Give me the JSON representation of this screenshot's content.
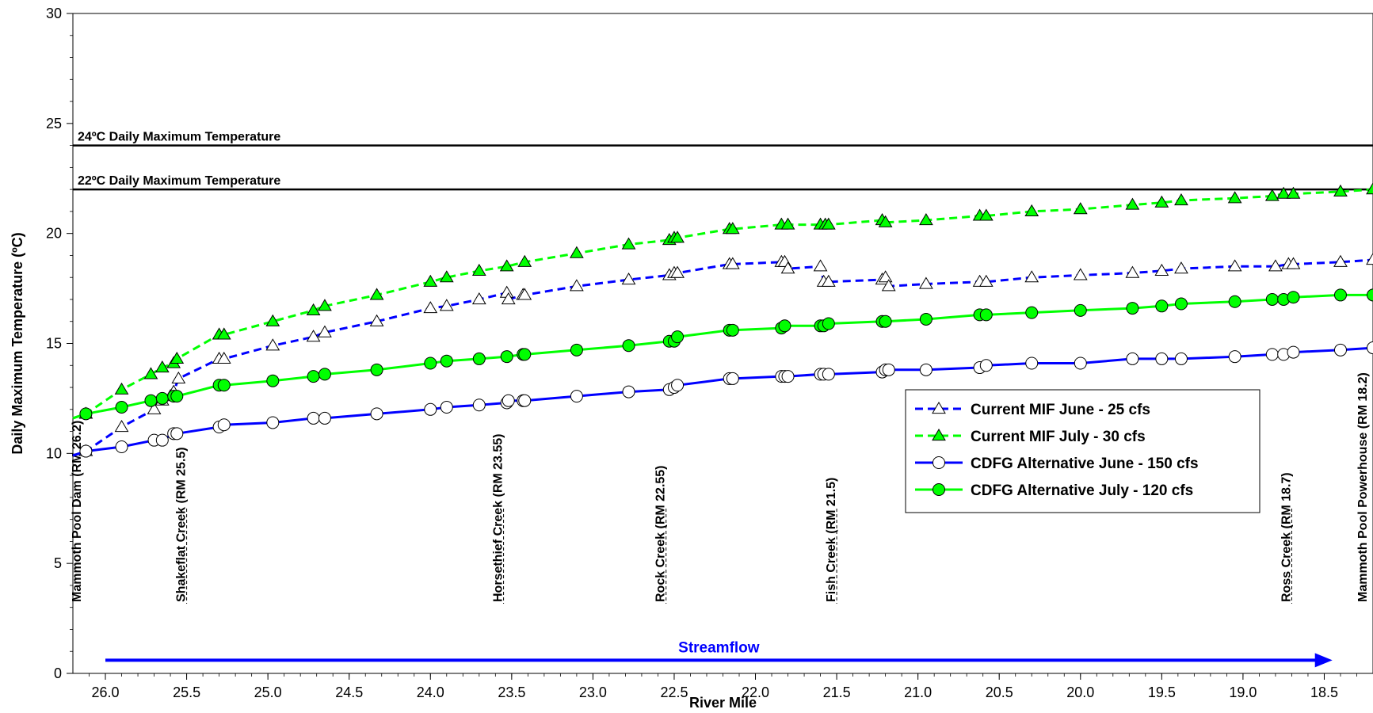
{
  "chart_data": {
    "type": "line",
    "title": "",
    "xlabel": "River Mile",
    "ylabel": "Daily Maximum Temperature (ºC)",
    "xlim": [
      26.2,
      18.2
    ],
    "x_reversed": true,
    "ylim": [
      0,
      30
    ],
    "x_ticks": [
      26.0,
      25.5,
      25.0,
      24.5,
      24.0,
      23.5,
      23.0,
      22.5,
      22.0,
      21.5,
      21.0,
      20.5,
      20.0,
      19.5,
      19.0,
      18.5
    ],
    "x_tick_labels": [
      "26.0",
      "25.5",
      "25.0",
      "24.5",
      "24.0",
      "23.5",
      "23.0",
      "22.5",
      "22.0",
      "21.5",
      "21.0",
      "20.5",
      "20.0",
      "19.5",
      "19.0",
      "18.5"
    ],
    "y_ticks": [
      0,
      5,
      10,
      15,
      20,
      25,
      30
    ],
    "y_tick_labels": [
      "0",
      "5",
      "10",
      "15",
      "20",
      "25",
      "30"
    ],
    "grid": false,
    "legend_position": "right-middle",
    "reference_lines": [
      {
        "y": 24,
        "label": "24ºC Daily Maximum Temperature"
      },
      {
        "y": 22,
        "label": "22ºC Daily Maximum Temperature"
      }
    ],
    "locations": [
      {
        "x": 26.2,
        "label": "Mammoth Pool Dam (RM 26.2)"
      },
      {
        "x": 25.5,
        "label": "Shakeflat Creek (RM 25.5)"
      },
      {
        "x": 23.55,
        "label": "Horsethief Creek (RM 23.55)"
      },
      {
        "x": 22.55,
        "label": "Rock Creek (RM 22.55)"
      },
      {
        "x": 21.5,
        "label": "Fish Creek (RM 21.5)"
      },
      {
        "x": 18.7,
        "label": "Ross Creek (RM 18.7)"
      },
      {
        "x": 18.2,
        "label": "Mammoth Pool Powerhouse (RM 18.2)"
      }
    ],
    "annotation": {
      "label": "Streamflow",
      "from_x": 26.0,
      "to_x": 18.45,
      "y": 0.6
    },
    "series": [
      {
        "name": "Current MIF June - 25 cfs",
        "color": "#0000ff",
        "dash": "dashed",
        "marker": "triangle-open",
        "x": [
          26.2,
          26.12,
          25.9,
          25.7,
          25.65,
          25.6,
          25.58,
          25.55,
          25.3,
          25.27,
          24.97,
          24.72,
          24.65,
          24.33,
          24.0,
          23.9,
          23.7,
          23.53,
          23.52,
          23.43,
          23.42,
          23.1,
          22.78,
          22.53,
          22.5,
          22.48,
          22.16,
          22.14,
          21.84,
          21.82,
          21.8,
          21.6,
          21.58,
          21.55,
          21.22,
          21.2,
          21.18,
          20.95,
          20.62,
          20.58,
          20.3,
          20.0,
          19.68,
          19.5,
          19.38,
          19.05,
          18.8,
          18.72,
          18.69,
          18.4,
          18.2
        ],
        "values": [
          9.9,
          10.1,
          11.2,
          12.0,
          12.4,
          12.6,
          12.8,
          13.4,
          14.3,
          14.3,
          14.9,
          15.3,
          15.5,
          16.0,
          16.6,
          16.7,
          17.0,
          17.3,
          17.0,
          17.2,
          17.2,
          17.6,
          17.9,
          18.1,
          18.2,
          18.2,
          18.6,
          18.6,
          18.7,
          18.7,
          18.4,
          18.5,
          17.8,
          17.8,
          17.9,
          18.0,
          17.6,
          17.7,
          17.8,
          17.8,
          18.0,
          18.1,
          18.2,
          18.3,
          18.4,
          18.5,
          18.5,
          18.6,
          18.6,
          18.7,
          18.8
        ]
      },
      {
        "name": "Current MIF July - 30 cfs",
        "color": "#00ff00",
        "dash": "dashed",
        "marker": "triangle-filled",
        "x": [
          26.2,
          26.12,
          25.9,
          25.72,
          25.65,
          25.58,
          25.56,
          25.3,
          25.27,
          24.97,
          24.72,
          24.65,
          24.33,
          24.0,
          23.9,
          23.7,
          23.53,
          23.42,
          23.1,
          22.78,
          22.53,
          22.5,
          22.48,
          22.16,
          22.14,
          21.84,
          21.8,
          21.6,
          21.57,
          21.55,
          21.22,
          21.2,
          20.95,
          20.62,
          20.58,
          20.3,
          20.0,
          19.68,
          19.5,
          19.38,
          19.05,
          18.82,
          18.75,
          18.69,
          18.4,
          18.2
        ],
        "values": [
          11.6,
          11.8,
          12.9,
          13.6,
          13.9,
          14.1,
          14.3,
          15.4,
          15.4,
          16.0,
          16.5,
          16.7,
          17.2,
          17.8,
          18.0,
          18.3,
          18.5,
          18.7,
          19.1,
          19.5,
          19.7,
          19.8,
          19.8,
          20.2,
          20.2,
          20.4,
          20.4,
          20.4,
          20.4,
          20.4,
          20.6,
          20.5,
          20.6,
          20.8,
          20.8,
          21.0,
          21.1,
          21.3,
          21.4,
          21.5,
          21.6,
          21.7,
          21.8,
          21.8,
          21.9,
          22.0
        ]
      },
      {
        "name": "CDFG Alternative June - 150 cfs",
        "color": "#0000ff",
        "dash": "solid",
        "marker": "circle-open",
        "x": [
          26.2,
          26.12,
          25.9,
          25.7,
          25.65,
          25.58,
          25.56,
          25.3,
          25.27,
          24.97,
          24.72,
          24.65,
          24.33,
          24.0,
          23.9,
          23.7,
          23.53,
          23.52,
          23.43,
          23.42,
          23.1,
          22.78,
          22.53,
          22.5,
          22.48,
          22.16,
          22.14,
          21.84,
          21.82,
          21.8,
          21.6,
          21.58,
          21.55,
          21.22,
          21.2,
          21.18,
          20.95,
          20.62,
          20.58,
          20.3,
          20.0,
          19.68,
          19.5,
          19.38,
          19.05,
          18.82,
          18.75,
          18.69,
          18.4,
          18.2
        ],
        "values": [
          9.9,
          10.1,
          10.3,
          10.6,
          10.6,
          10.9,
          10.9,
          11.2,
          11.3,
          11.4,
          11.6,
          11.6,
          11.8,
          12.0,
          12.1,
          12.2,
          12.3,
          12.4,
          12.4,
          12.4,
          12.6,
          12.8,
          12.9,
          13.0,
          13.1,
          13.4,
          13.4,
          13.5,
          13.5,
          13.5,
          13.6,
          13.6,
          13.6,
          13.7,
          13.8,
          13.8,
          13.8,
          13.9,
          14.0,
          14.1,
          14.1,
          14.3,
          14.3,
          14.3,
          14.4,
          14.5,
          14.5,
          14.6,
          14.7,
          14.8
        ]
      },
      {
        "name": "CDFG Alternative July - 120 cfs",
        "color": "#00ff00",
        "dash": "solid",
        "marker": "circle-filled",
        "x": [
          26.2,
          26.12,
          25.9,
          25.72,
          25.65,
          25.58,
          25.56,
          25.3,
          25.27,
          24.97,
          24.72,
          24.65,
          24.33,
          24.0,
          23.9,
          23.7,
          23.53,
          23.43,
          23.42,
          23.1,
          22.78,
          22.53,
          22.5,
          22.48,
          22.16,
          22.14,
          21.84,
          21.82,
          21.6,
          21.58,
          21.55,
          21.22,
          21.2,
          20.95,
          20.62,
          20.58,
          20.3,
          20.0,
          19.68,
          19.5,
          19.38,
          19.05,
          18.82,
          18.75,
          18.69,
          18.4,
          18.2
        ],
        "values": [
          11.6,
          11.8,
          12.1,
          12.4,
          12.5,
          12.6,
          12.6,
          13.1,
          13.1,
          13.3,
          13.5,
          13.6,
          13.8,
          14.1,
          14.2,
          14.3,
          14.4,
          14.5,
          14.5,
          14.7,
          14.9,
          15.1,
          15.1,
          15.3,
          15.6,
          15.6,
          15.7,
          15.8,
          15.8,
          15.8,
          15.9,
          16.0,
          16.0,
          16.1,
          16.3,
          16.3,
          16.4,
          16.5,
          16.6,
          16.7,
          16.8,
          16.9,
          17.0,
          17.0,
          17.1,
          17.2,
          17.2
        ]
      }
    ]
  }
}
